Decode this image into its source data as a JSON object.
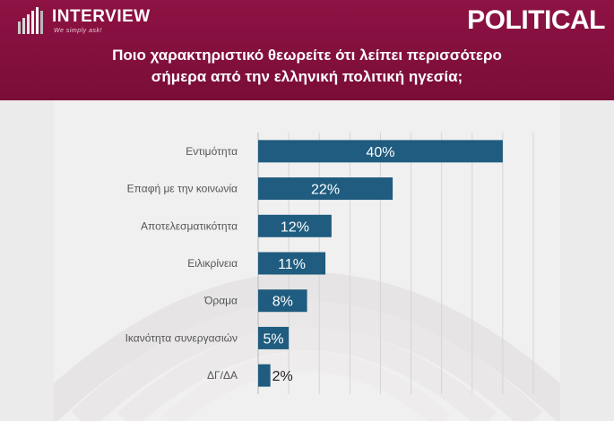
{
  "header": {
    "logo_text": "INTERVIEW",
    "logo_tagline": "We simply ask!",
    "brand": "POLITICAL",
    "question_line1": "Ποιο χαρακτηριστικό θεωρείτε ότι λείπει περισσότερο",
    "question_line2": "σήμερα από την ελληνική πολιτική ηγεσία;",
    "accent_color": "#8e1244"
  },
  "chart_data": {
    "type": "bar",
    "orientation": "horizontal",
    "categories": [
      "Εντιμότητα",
      "Επαφή με την κοινωνία",
      "Αποτελεσματικότητα",
      "Ειλικρίνεια",
      "Όραμα",
      "Ικανότητα συνεργασιών",
      "ΔΓ/ΔΑ"
    ],
    "values": [
      40,
      22,
      12,
      11,
      8,
      5,
      2
    ],
    "value_labels": [
      "40%",
      "22%",
      "12%",
      "11%",
      "8%",
      "5%",
      "2%"
    ],
    "xlim": [
      0,
      45
    ],
    "grid": true,
    "bar_color": "#1f5c7f"
  }
}
